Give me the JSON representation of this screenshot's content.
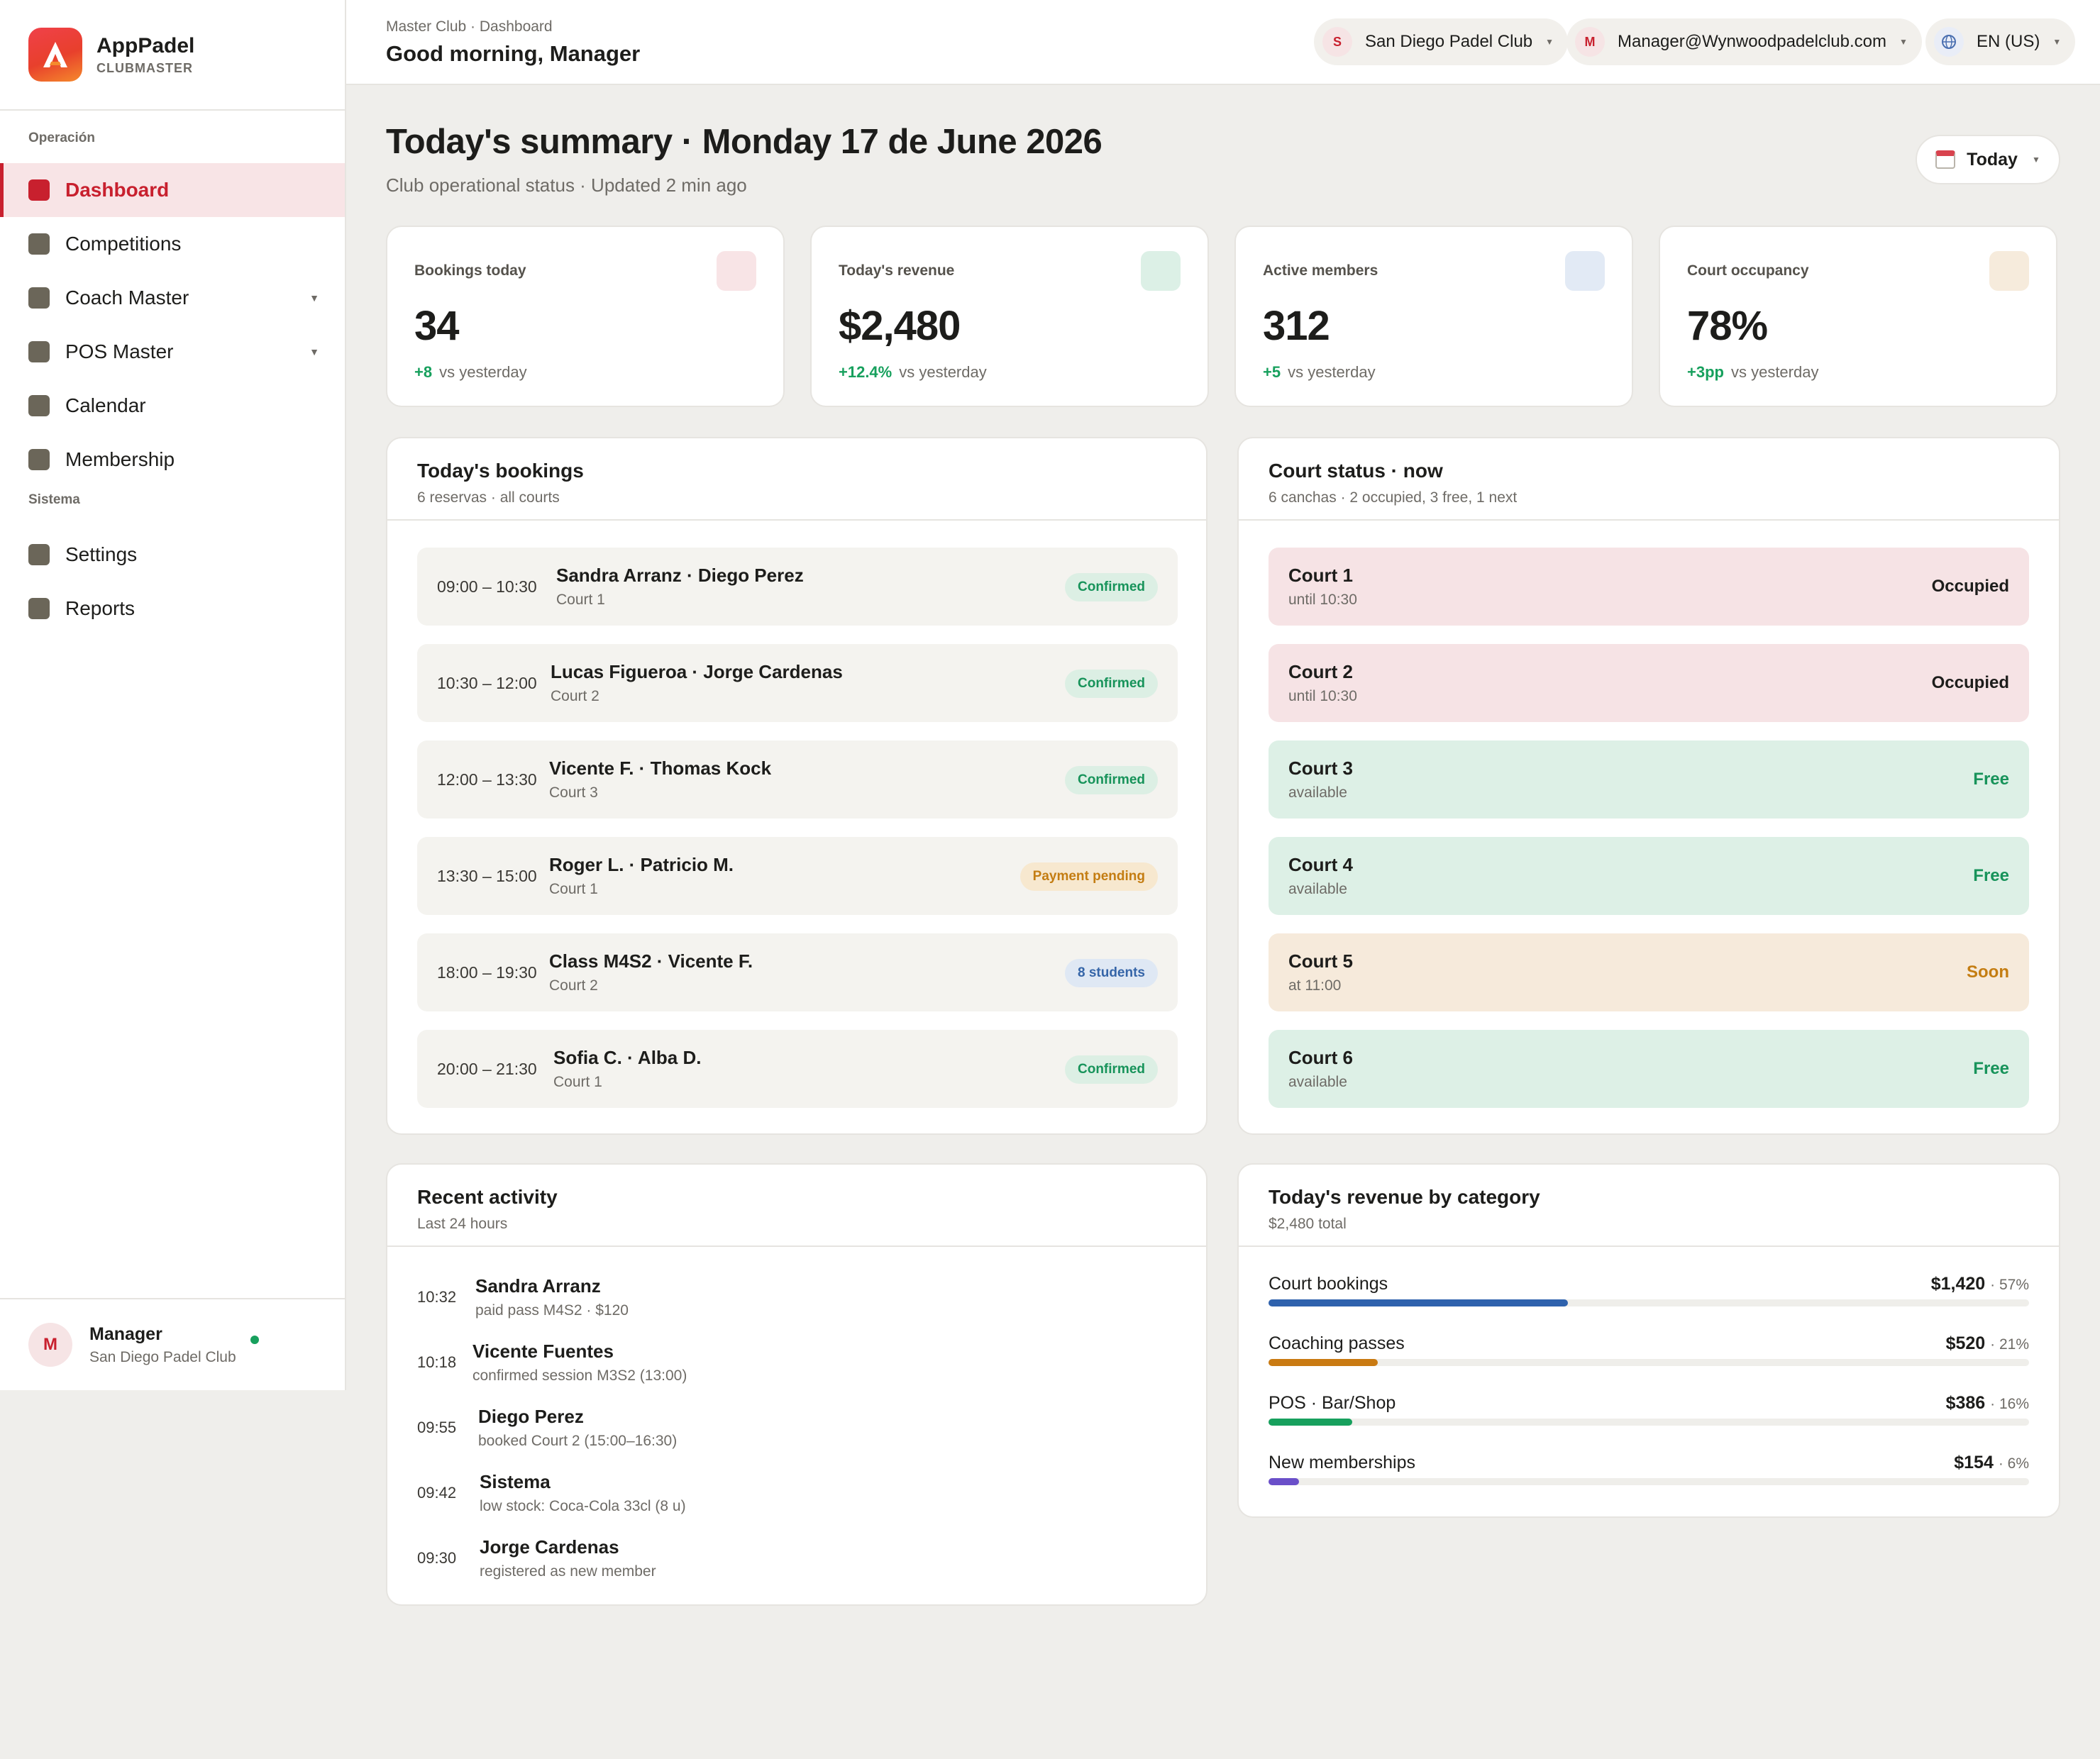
{
  "brand": {
    "name": "AppPadel",
    "sub": "CLUBMASTER"
  },
  "sidebar": {
    "sections": [
      {
        "title": "Operación"
      },
      {
        "title": "Sistema"
      }
    ],
    "items": [
      {
        "label": "Dashboard",
        "icon": "square-icon",
        "active": true
      },
      {
        "label": "Competitions",
        "icon": "square-icon"
      },
      {
        "label": "Coach Master",
        "icon": "square-icon",
        "has_submenu": true
      },
      {
        "label": "POS Master",
        "icon": "square-icon",
        "has_submenu": true
      },
      {
        "label": "Calendar",
        "icon": "square-icon"
      },
      {
        "label": "Membership",
        "icon": "square-icon"
      },
      {
        "label": "Settings",
        "icon": "square-icon"
      },
      {
        "label": "Reports",
        "icon": "square-icon"
      }
    ],
    "user": {
      "initial": "M",
      "name": "Manager",
      "club": "San Diego Padel Club",
      "status": "online"
    }
  },
  "header": {
    "breadcrumb": "Master Club · Dashboard",
    "greeting": "Good morning, Manager",
    "club_selector": {
      "initial": "S",
      "label": "San Diego Padel Club"
    },
    "account_selector": {
      "initial": "M",
      "label": "Manager@Wynwoodpadelclub.com"
    },
    "language_selector": {
      "icon": "globe-icon",
      "label": "EN (US)"
    }
  },
  "summary": {
    "title": "Today's summary · Monday 17 de June 2026",
    "subtitle": "Club operational status · Updated 2 min ago",
    "period_button": "Today"
  },
  "kpis": [
    {
      "label": "Bookings today",
      "value": "34",
      "delta": "+8",
      "delta_note": "vs yesterday",
      "icon_color": "#f8e4e6"
    },
    {
      "label": "Today's revenue",
      "value": "$2,480",
      "delta": "+12.4%",
      "delta_note": "vs yesterday",
      "icon_color": "#dcf0e6"
    },
    {
      "label": "Active members",
      "value": "312",
      "delta": "+5",
      "delta_note": "vs yesterday",
      "icon_color": "#e2eaf5"
    },
    {
      "label": "Court occupancy",
      "value": "78%",
      "delta": "+3pp",
      "delta_note": "vs yesterday",
      "icon_color": "#f6ebdc"
    }
  ],
  "bookings": {
    "title": "Today's bookings",
    "subtitle": "6 reservas · all courts",
    "items": [
      {
        "time": "09:00 – 10:30",
        "names": "Sandra Arranz · Diego Perez",
        "court": "Court 1",
        "status": "Confirmed",
        "status_type": "green"
      },
      {
        "time": "10:30 – 12:00",
        "names": "Lucas Figueroa · Jorge Cardenas",
        "court": "Court 2",
        "status": "Confirmed",
        "status_type": "green"
      },
      {
        "time": "12:00 – 13:30",
        "names": "Vicente F. · Thomas Kock",
        "court": "Court 3",
        "status": "Confirmed",
        "status_type": "green"
      },
      {
        "time": "13:30 – 15:00",
        "names": "Roger L. · Patricio M.",
        "court": "Court 1",
        "status": "Payment pending",
        "status_type": "amber"
      },
      {
        "time": "18:00 – 19:30",
        "names": "Class M4S2 · Vicente F.",
        "court": "Court 2",
        "status": "8 students",
        "status_type": "blue"
      },
      {
        "time": "20:00 – 21:30",
        "names": "Sofia C. · Alba D.",
        "court": "Court 1",
        "status": "Confirmed",
        "status_type": "green"
      }
    ]
  },
  "courts": {
    "title": "Court status · now",
    "subtitle": "6 canchas · 2 occupied, 3 free, 1 next",
    "items": [
      {
        "name": "Court 1",
        "info": "until 10:30",
        "state": "Occupied",
        "state_type": "occupied"
      },
      {
        "name": "Court 2",
        "info": "until 10:30",
        "state": "Occupied",
        "state_type": "occupied"
      },
      {
        "name": "Court 3",
        "info": "available",
        "state": "Free",
        "state_type": "free"
      },
      {
        "name": "Court 4",
        "info": "available",
        "state": "Free",
        "state_type": "free"
      },
      {
        "name": "Court 5",
        "info": "at 11:00",
        "state": "Soon",
        "state_type": "soon"
      },
      {
        "name": "Court 6",
        "info": "available",
        "state": "Free",
        "state_type": "free"
      }
    ]
  },
  "activity": {
    "title": "Recent activity",
    "subtitle": "Last 24 hours",
    "items": [
      {
        "time": "10:32",
        "name": "Sandra Arranz",
        "desc": "paid pass M4S2 · $120"
      },
      {
        "time": "10:18",
        "name": "Vicente Fuentes",
        "desc": "confirmed session M3S2 (13:00)"
      },
      {
        "time": "09:55",
        "name": "Diego Perez",
        "desc": "booked Court 2 (15:00–16:30)"
      },
      {
        "time": "09:42",
        "name": "Sistema",
        "desc": "low stock: Coca-Cola 33cl (8 u)"
      },
      {
        "time": "09:30",
        "name": "Jorge Cardenas",
        "desc": "registered as new member"
      }
    ]
  },
  "revenue": {
    "title": "Today's revenue by category",
    "subtitle": "$2,480 total",
    "items": [
      {
        "label": "Court bookings",
        "value": "$1,420",
        "pct": "· 57%",
        "share": 0.394,
        "color": "#2f62ad"
      },
      {
        "label": "Coaching passes",
        "value": "$520",
        "pct": "· 21%",
        "share": 0.144,
        "color": "#c97a12"
      },
      {
        "label": "POS · Bar/Shop",
        "value": "$386",
        "pct": "· 16%",
        "share": 0.11,
        "color": "#17a05d"
      },
      {
        "label": "New memberships",
        "value": "$154",
        "pct": "· 6%",
        "share": 0.04,
        "color": "#6a4fc9"
      }
    ]
  }
}
